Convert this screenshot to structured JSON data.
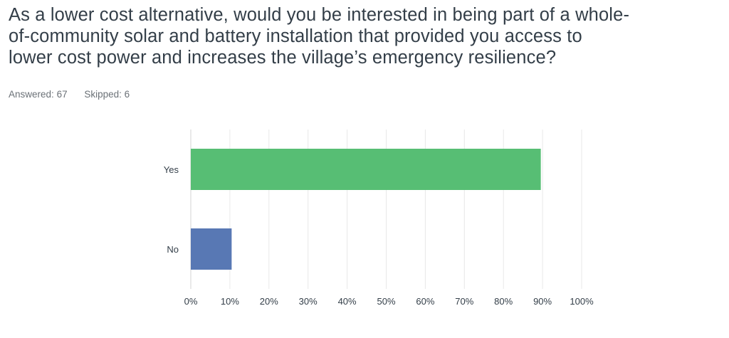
{
  "question": {
    "line1": "As a lower cost alternative, would you be interested in being part of a whole-",
    "line2": "of-community solar and battery installation that provided you access to",
    "line3": "lower cost power and increases the village’s emergency resilience?"
  },
  "stats": {
    "answered_label": "Answered:",
    "answered": "67",
    "skipped_label": "Skipped:",
    "skipped": "6"
  },
  "chart_data": {
    "type": "bar",
    "orientation": "horizontal",
    "categories": [
      "Yes",
      "No"
    ],
    "values": [
      89.55,
      10.45
    ],
    "xlim": [
      0,
      100
    ],
    "ticks": [
      "0%",
      "10%",
      "20%",
      "30%",
      "40%",
      "50%",
      "60%",
      "70%",
      "80%",
      "90%",
      "100%"
    ],
    "colors": [
      "#57be74",
      "#5878b4"
    ],
    "grid": true,
    "legend": "none"
  }
}
